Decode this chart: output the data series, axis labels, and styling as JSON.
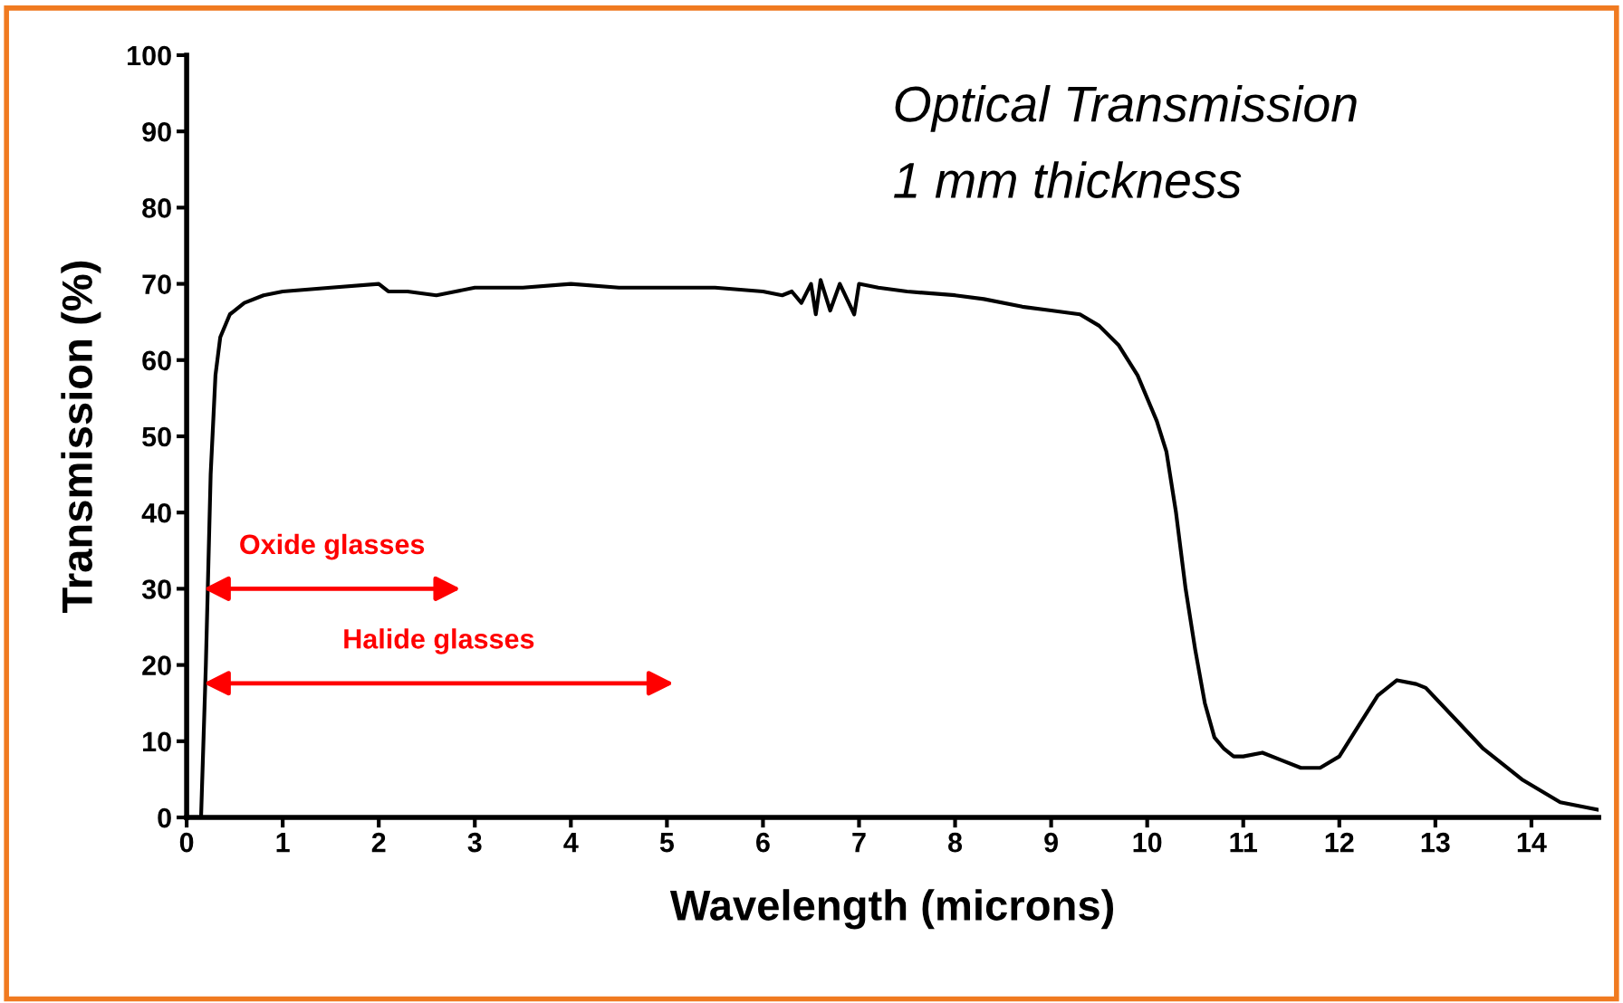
{
  "chart_data": {
    "type": "line",
    "title": "Optical Transmission",
    "subtitle": "1 mm thickness",
    "xlabel": "Wavelength (microns)",
    "ylabel": "Transmission (%)",
    "x": [
      0.1,
      0.15,
      0.2,
      0.25,
      0.3,
      0.35,
      0.45,
      0.6,
      0.8,
      1.0,
      1.5,
      2.0,
      2.1,
      2.3,
      2.6,
      2.8,
      3.0,
      3.5,
      4.0,
      4.5,
      5.0,
      5.5,
      6.0,
      6.2,
      6.3,
      6.4,
      6.5,
      6.55,
      6.6,
      6.7,
      6.8,
      6.95,
      7.0,
      7.2,
      7.5,
      8.0,
      8.3,
      8.7,
      9.0,
      9.3,
      9.5,
      9.7,
      9.9,
      10.1,
      10.2,
      10.3,
      10.4,
      10.5,
      10.6,
      10.7,
      10.8,
      10.9,
      11.0,
      11.2,
      11.4,
      11.6,
      11.8,
      12.0,
      12.2,
      12.4,
      12.6,
      12.8,
      12.9,
      13.2,
      13.5,
      13.9,
      14.3,
      14.7
    ],
    "series": [
      {
        "color": "#000000",
        "values": [
          0,
          0,
          20,
          45,
          58,
          63,
          66,
          67.5,
          68.5,
          69,
          69.5,
          70,
          69,
          69,
          68.5,
          69,
          69.5,
          69.5,
          70,
          69.5,
          69.5,
          69.5,
          69,
          68.5,
          69,
          67.5,
          70,
          66,
          70.5,
          66.5,
          70,
          66,
          70,
          69.5,
          69,
          68.5,
          68,
          67,
          66.5,
          66,
          64.5,
          62,
          58,
          52,
          48,
          40,
          30,
          22,
          15,
          10.5,
          9,
          8,
          8,
          8.5,
          7.5,
          6.5,
          6.5,
          8,
          12,
          16,
          18,
          17.5,
          17,
          13,
          9,
          5,
          2,
          1
        ]
      }
    ],
    "xlim": [
      0,
      14.7
    ],
    "ylim": [
      0,
      100
    ],
    "xticks": [
      0,
      1,
      2,
      3,
      4,
      5,
      6,
      7,
      8,
      9,
      10,
      11,
      12,
      13,
      14
    ],
    "yticks": [
      0,
      10,
      20,
      30,
      40,
      50,
      60,
      70,
      80,
      90,
      100
    ],
    "grid": false,
    "legend": false,
    "marker": "none",
    "line_style": "solid",
    "annotations": [
      "Oxide glasses",
      "Halide glasses"
    ]
  }
}
